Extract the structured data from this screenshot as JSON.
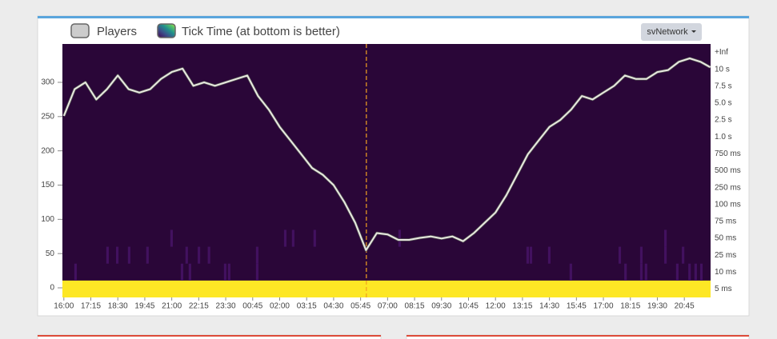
{
  "chart_data": {
    "type": "line_heatmap",
    "legend": [
      "Players",
      "Tick Time (at bottom is better)"
    ],
    "button": "svNetwork",
    "series": [
      {
        "name": "Players",
        "color": "#e8e8e0",
        "x": [
          0,
          30,
          60,
          90,
          120,
          150,
          180,
          210,
          240,
          270,
          300,
          330,
          360,
          390,
          420,
          450,
          480,
          510,
          540,
          570,
          600,
          630,
          660,
          690,
          720,
          750,
          780,
          810,
          840,
          870,
          900,
          930,
          960,
          990,
          1020,
          1050,
          1080,
          1110,
          1140,
          1170,
          1200,
          1230,
          1260,
          1290,
          1320,
          1350,
          1380,
          1410,
          1440,
          1470,
          1500,
          1530,
          1560,
          1590,
          1620,
          1650,
          1680,
          1710,
          1740,
          1770,
          1797
        ],
        "values": [
          251,
          290,
          300,
          275,
          290,
          310,
          290,
          285,
          290,
          305,
          315,
          320,
          295,
          300,
          295,
          300,
          305,
          310,
          280,
          260,
          235,
          215,
          195,
          175,
          165,
          150,
          125,
          95,
          55,
          80,
          78,
          70,
          70,
          73,
          75,
          72,
          75,
          68,
          80,
          95,
          110,
          135,
          165,
          195,
          215,
          235,
          245,
          260,
          280,
          275,
          285,
          295,
          310,
          305,
          305,
          315,
          318,
          330,
          335,
          330,
          322
        ]
      }
    ],
    "heatmap": {
      "name": "Tick Time (at bottom is better)",
      "background": "#2a0638",
      "colorscale": [
        "#440154",
        "#3b528b",
        "#21918c",
        "#5ec962",
        "#fde725"
      ],
      "cells": [
        {
          "x": -4,
          "width": 1802,
          "bin": 14,
          "value": 1
        },
        {
          "x": 29,
          "width": 7,
          "bin": 13,
          "value": 0.05
        },
        {
          "x": 118,
          "width": 7,
          "bin": 12,
          "value": 0.05
        },
        {
          "x": 145,
          "width": 7,
          "bin": 12,
          "value": 0.05
        },
        {
          "x": 178,
          "width": 7,
          "bin": 12,
          "value": 0.05
        },
        {
          "x": 229,
          "width": 7,
          "bin": 12,
          "value": 0.05
        },
        {
          "x": 296,
          "width": 7,
          "bin": 11,
          "value": 0.05
        },
        {
          "x": 325,
          "width": 7,
          "bin": 13,
          "value": 0.05
        },
        {
          "x": 338,
          "width": 7,
          "bin": 12,
          "value": 0.05
        },
        {
          "x": 347,
          "width": 7,
          "bin": 13,
          "value": 0.05
        },
        {
          "x": 372,
          "width": 7,
          "bin": 12,
          "value": 0.05
        },
        {
          "x": 400,
          "width": 7,
          "bin": 12,
          "value": 0.05
        },
        {
          "x": 445,
          "width": 7,
          "bin": 13,
          "value": 0.05
        },
        {
          "x": 456,
          "width": 7,
          "bin": 13,
          "value": 0.05
        },
        {
          "x": 534,
          "width": 7,
          "bin": 13,
          "value": 0.05
        },
        {
          "x": 534,
          "width": 7,
          "bin": 12,
          "value": 0.05
        },
        {
          "x": 612,
          "width": 7,
          "bin": 11,
          "value": 0.05
        },
        {
          "x": 634,
          "width": 7,
          "bin": 11,
          "value": 0.05
        },
        {
          "x": 694,
          "width": 7,
          "bin": 11,
          "value": 0.05
        },
        {
          "x": 930,
          "width": 7,
          "bin": 11,
          "value": 0.05
        },
        {
          "x": 1286,
          "width": 7,
          "bin": 12,
          "value": 0.05
        },
        {
          "x": 1295,
          "width": 7,
          "bin": 12,
          "value": 0.05
        },
        {
          "x": 1346,
          "width": 7,
          "bin": 12,
          "value": 0.05
        },
        {
          "x": 1406,
          "width": 7,
          "bin": 13,
          "value": 0.05
        },
        {
          "x": 1542,
          "width": 7,
          "bin": 12,
          "value": 0.05
        },
        {
          "x": 1558,
          "width": 7,
          "bin": 13,
          "value": 0.05
        },
        {
          "x": 1602,
          "width": 7,
          "bin": 12,
          "value": 0.05
        },
        {
          "x": 1602,
          "width": 7,
          "bin": 13,
          "value": 0.05
        },
        {
          "x": 1615,
          "width": 7,
          "bin": 13,
          "value": 0.05
        },
        {
          "x": 1669,
          "width": 7,
          "bin": 11,
          "value": 0.05
        },
        {
          "x": 1669,
          "width": 7,
          "bin": 12,
          "value": 0.05
        },
        {
          "x": 1702,
          "width": 7,
          "bin": 13,
          "value": 0.05
        },
        {
          "x": 1718,
          "width": 7,
          "bin": 12,
          "value": 0.05
        },
        {
          "x": 1736,
          "width": 7,
          "bin": 13,
          "value": 0.05
        },
        {
          "x": 1753,
          "width": 7,
          "bin": 13,
          "value": 0.05
        },
        {
          "x": 1769,
          "width": 7,
          "bin": 13,
          "value": 0.05
        }
      ]
    },
    "cursor_x": 841,
    "cursor_color": "#f0a020",
    "xlim": [
      -4,
      1798
    ],
    "xticks": [
      {
        "value": 0,
        "label": "16:00"
      },
      {
        "value": 75,
        "label": "17:15"
      },
      {
        "value": 150,
        "label": "18:30"
      },
      {
        "value": 225,
        "label": "19:45"
      },
      {
        "value": 300,
        "label": "21:00"
      },
      {
        "value": 375,
        "label": "22:15"
      },
      {
        "value": 450,
        "label": "23:30"
      },
      {
        "value": 525,
        "label": "00:45"
      },
      {
        "value": 600,
        "label": "02:00"
      },
      {
        "value": 675,
        "label": "03:15"
      },
      {
        "value": 750,
        "label": "04:30"
      },
      {
        "value": 825,
        "label": "05:45"
      },
      {
        "value": 900,
        "label": "07:00"
      },
      {
        "value": 975,
        "label": "08:15"
      },
      {
        "value": 1050,
        "label": "09:30"
      },
      {
        "value": 1125,
        "label": "10:45"
      },
      {
        "value": 1200,
        "label": "12:00"
      },
      {
        "value": 1275,
        "label": "13:15"
      },
      {
        "value": 1350,
        "label": "14:30"
      },
      {
        "value": 1425,
        "label": "15:45"
      },
      {
        "value": 1500,
        "label": "17:00"
      },
      {
        "value": 1575,
        "label": "18:15"
      },
      {
        "value": 1650,
        "label": "19:30"
      },
      {
        "value": 1725,
        "label": "20:45"
      }
    ],
    "ylim": [
      -14,
      356
    ],
    "yticks": [
      0,
      50,
      100,
      150,
      200,
      250,
      300
    ],
    "y2ticks": [
      "+Inf",
      "10 s",
      "7.5 s",
      "5.0 s",
      "2.5 s",
      "1.0 s",
      "750 ms",
      "500 ms",
      "250 ms",
      "100 ms",
      "75 ms",
      "50 ms",
      "25 ms",
      "10 ms",
      "5 ms"
    ]
  }
}
